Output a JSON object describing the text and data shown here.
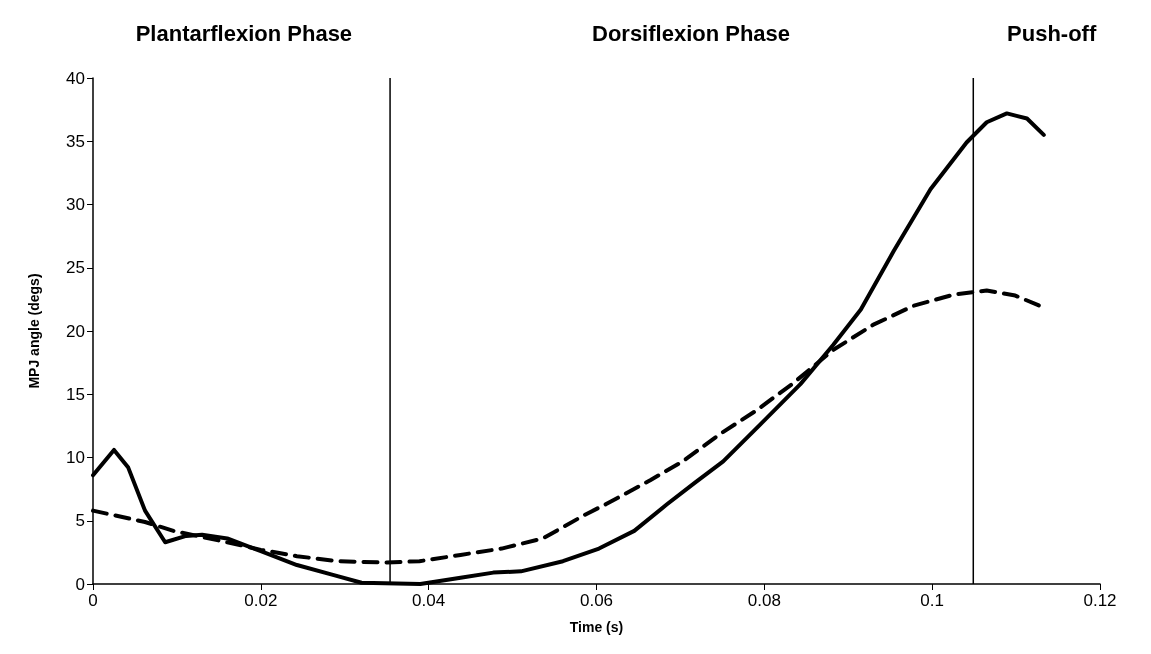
{
  "chart_data": {
    "type": "line",
    "xlabel": "Time (s)",
    "ylabel": "MPJ angle (degs)",
    "annotations": [
      "Plantarflexion Phase",
      "Dorsiflexion Phase",
      "Push-off"
    ],
    "xlim": [
      0,
      0.12
    ],
    "xticks": [
      0,
      0.02,
      0.04,
      0.06,
      0.08,
      0.1,
      0.12
    ],
    "ylim": [
      0,
      40
    ],
    "yticks": [
      0,
      5,
      10,
      15,
      20,
      25,
      30,
      35,
      40
    ],
    "marker": "none",
    "ref_lines": [
      {
        "axis": "x",
        "value": 0.0354,
        "color": "#000000"
      },
      {
        "axis": "x",
        "value": 0.1049,
        "color": "#000000"
      }
    ],
    "series": [
      {
        "color": "#000000",
        "line_style": "solid",
        "x": [
          0,
          0.0025,
          0.0042,
          0.0062,
          0.0086,
          0.0111,
          0.013,
          0.016,
          0.02,
          0.0243,
          0.0287,
          0.032,
          0.039,
          0.0438,
          0.0477,
          0.051,
          0.056,
          0.0603,
          0.0645,
          0.0684,
          0.0717,
          0.0751,
          0.0795,
          0.0843,
          0.0882,
          0.0915,
          0.0954,
          0.0998,
          0.1041,
          0.1065,
          0.1089,
          0.1113,
          0.1133
        ],
        "values": [
          8.6,
          10.6,
          9.2,
          5.8,
          3.3,
          3.8,
          3.9,
          3.6,
          2.6,
          1.5,
          0.7,
          0.1,
          0,
          0.5,
          0.9,
          1.0,
          1.8,
          2.8,
          4.2,
          6.3,
          8.0,
          9.7,
          12.6,
          15.8,
          18.9,
          21.7,
          26.3,
          31.2,
          34.9,
          36.5,
          37.2,
          36.8,
          35.5
        ]
      },
      {
        "color": "#000000",
        "line_style": "dashed",
        "x": [
          0,
          0.0062,
          0.0096,
          0.016,
          0.02,
          0.0243,
          0.0292,
          0.035,
          0.0389,
          0.0438,
          0.0487,
          0.0536,
          0.0587,
          0.0611,
          0.0664,
          0.0703,
          0.0746,
          0.079,
          0.0833,
          0.0882,
          0.093,
          0.0978,
          0.1027,
          0.1065,
          0.1099,
          0.1128
        ],
        "values": [
          5.8,
          4.9,
          4.2,
          3.3,
          2.7,
          2.2,
          1.8,
          1.7,
          1.8,
          2.3,
          2.8,
          3.6,
          5.5,
          6.3,
          8.2,
          9.7,
          11.8,
          13.7,
          15.8,
          18.5,
          20.5,
          22.0,
          22.9,
          23.2,
          22.8,
          22.0
        ]
      }
    ]
  }
}
